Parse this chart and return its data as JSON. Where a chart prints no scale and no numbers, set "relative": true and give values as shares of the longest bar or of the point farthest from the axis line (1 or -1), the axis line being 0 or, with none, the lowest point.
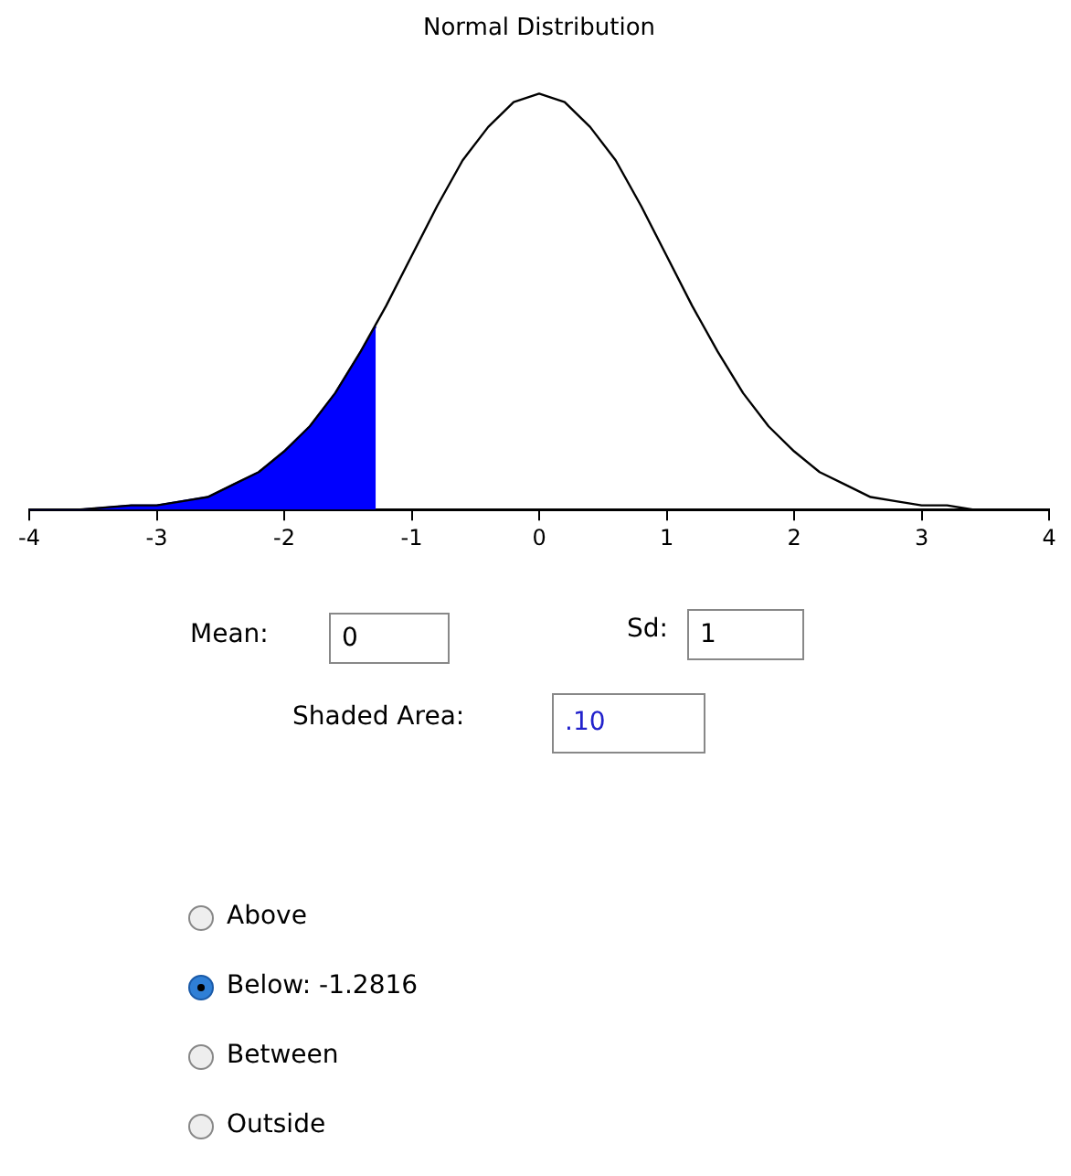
{
  "chart_data": {
    "type": "line",
    "title": "Normal Distribution",
    "relative": true,
    "xlim": [
      -4,
      4
    ],
    "xticks": [
      -4,
      -3,
      -2,
      -1,
      0,
      1,
      2,
      3,
      4
    ],
    "grid": false,
    "legend": false,
    "marker": "none",
    "series": [
      {
        "type": "area",
        "color": "#0000ff",
        "x": [
          -4,
          -3.6,
          -3.2,
          -3,
          -2.8,
          -2.6,
          -2.4,
          -2.2,
          -2,
          -1.8,
          -1.6,
          -1.4,
          -1.2816
        ],
        "values": [
          0,
          0,
          0.01,
          0.01,
          0.02,
          0.03,
          0.06,
          0.09,
          0.14,
          0.2,
          0.28,
          0.38,
          0.44
        ]
      },
      {
        "color": "#000000",
        "x": [
          -4,
          -3.6,
          -3.2,
          -3,
          -2.8,
          -2.6,
          -2.4,
          -2.2,
          -2,
          -1.8,
          -1.6,
          -1.4,
          -1.2,
          -1,
          -0.8,
          -0.6,
          -0.4,
          -0.2,
          0,
          0.2,
          0.4,
          0.6,
          0.8,
          1,
          1.2,
          1.4,
          1.6,
          1.8,
          2,
          2.2,
          2.4,
          2.6,
          2.8,
          3,
          3.2,
          3.4
        ],
        "values": [
          0,
          0,
          0.01,
          0.01,
          0.02,
          0.03,
          0.06,
          0.09,
          0.14,
          0.2,
          0.28,
          0.38,
          0.49,
          0.61,
          0.73,
          0.84,
          0.92,
          0.98,
          1,
          0.98,
          0.92,
          0.84,
          0.73,
          0.61,
          0.49,
          0.38,
          0.28,
          0.2,
          0.14,
          0.09,
          0.06,
          0.03,
          0.02,
          0.01,
          0.01,
          0
        ]
      }
    ],
    "annotations": [
      "Mean:",
      "0",
      "Sd:",
      "1",
      "Shaded Area:",
      ".10",
      "Above",
      "Below: -1.2816",
      "Between",
      "Outside"
    ]
  }
}
